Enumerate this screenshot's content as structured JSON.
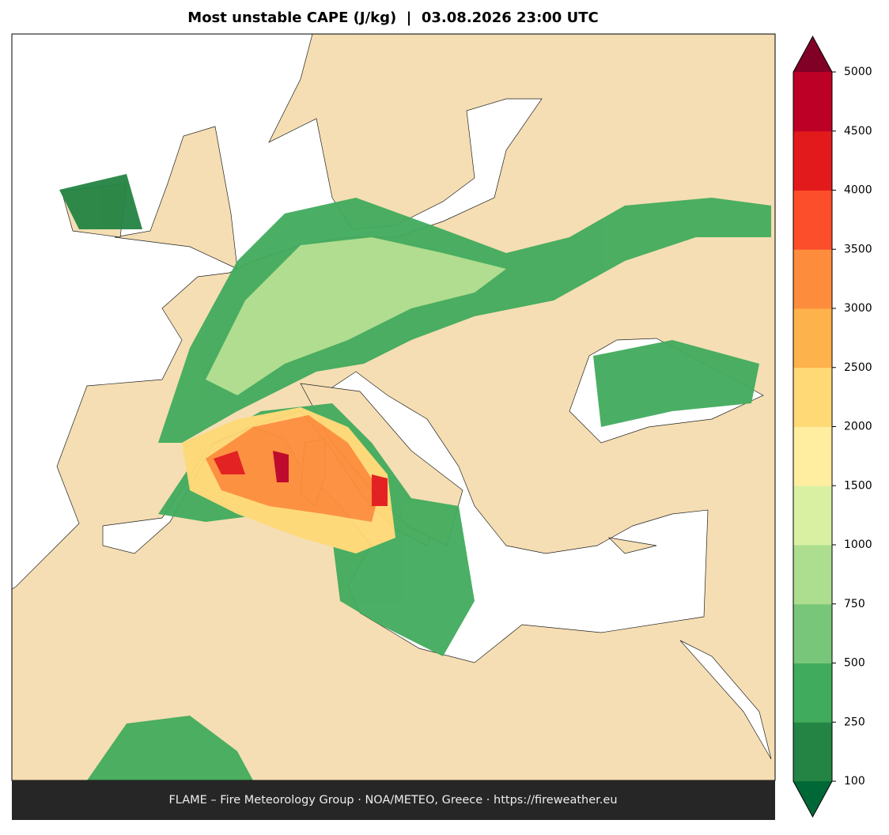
{
  "title": "Most unstable CAPE (J/kg)  |  03.08.2026 23:00 UTC",
  "footer": "FLAME – Fire Meteorology Group · NOA/METEO, Greece · https://fireweather.eu",
  "colorbar": {
    "ticks": [
      100,
      250,
      500,
      750,
      1000,
      1500,
      2000,
      2500,
      3000,
      3500,
      4000,
      4500,
      5000
    ],
    "colors": [
      "#238443",
      "#41ab5d",
      "#78c679",
      "#addd8e",
      "#d9f0a3",
      "#ffeda0",
      "#fed976",
      "#feb24c",
      "#fd8d3c",
      "#fc4e2a",
      "#e31a1c",
      "#bd0026"
    ],
    "under_color": "#006837",
    "over_color": "#800026"
  }
}
